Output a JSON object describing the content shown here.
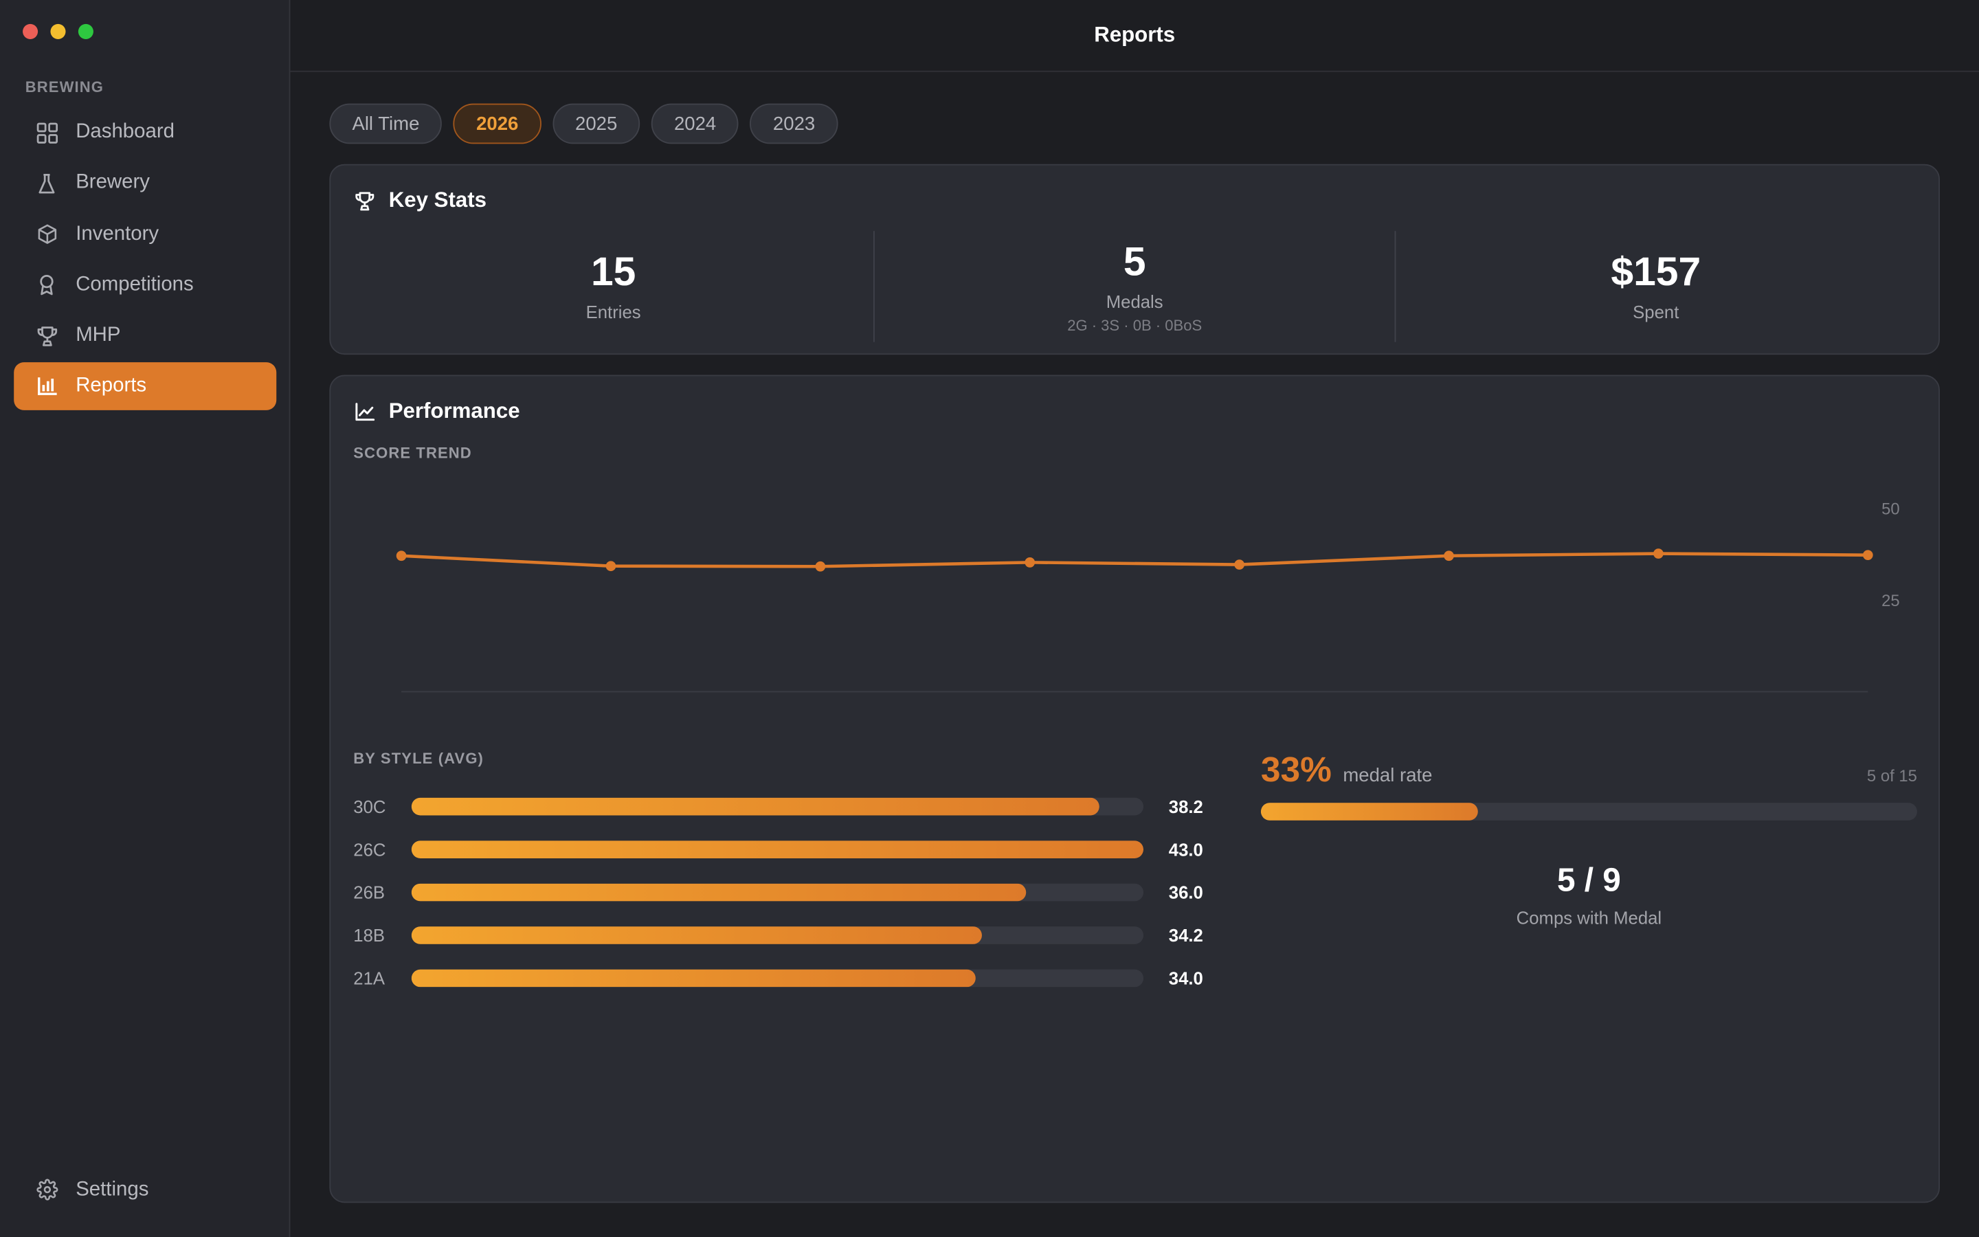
{
  "window": {
    "title": "Reports"
  },
  "sidebar": {
    "section_label": "BREWING",
    "items": [
      {
        "label": "Dashboard",
        "icon": "grid-icon"
      },
      {
        "label": "Brewery",
        "icon": "flask-icon"
      },
      {
        "label": "Inventory",
        "icon": "box-icon"
      },
      {
        "label": "Competitions",
        "icon": "award-icon"
      },
      {
        "label": "MHP",
        "icon": "trophy-icon"
      },
      {
        "label": "Reports",
        "icon": "bar-chart-icon",
        "active": true
      }
    ],
    "settings_label": "Settings"
  },
  "filters": {
    "chips": [
      "All Time",
      "2026",
      "2025",
      "2024",
      "2023"
    ],
    "selected": "2026"
  },
  "key_stats": {
    "title": "Key Stats",
    "entries": {
      "value": "15",
      "label": "Entries"
    },
    "medals": {
      "value": "5",
      "label": "Medals",
      "breakdown": "2G · 3S · 0B · 0BoS"
    },
    "spent": {
      "value": "$157",
      "label": "Spent"
    }
  },
  "performance": {
    "title": "Performance",
    "score_trend_label": "SCORE TREND",
    "by_style_label": "BY STYLE (AVG)",
    "styles": [
      {
        "code": "30C",
        "avg": "38.2",
        "fraction": 0.94
      },
      {
        "code": "26C",
        "avg": "43.0",
        "fraction": 1.0
      },
      {
        "code": "26B",
        "avg": "36.0",
        "fraction": 0.84
      },
      {
        "code": "18B",
        "avg": "34.2",
        "fraction": 0.78
      },
      {
        "code": "21A",
        "avg": "34.0",
        "fraction": 0.77
      }
    ],
    "medal_rate": {
      "percent": "33%",
      "label": "medal rate",
      "count_text": "5 of 15",
      "fraction": 0.33
    },
    "comps_with_medal": {
      "value": "5 / 9",
      "label": "Comps with Medal"
    }
  },
  "colors": {
    "accent": "#dd7a2a",
    "accent_light": "#f3a52f",
    "background": "#1d1e22",
    "card": "#2a2c33",
    "sidebar": "#24252b"
  },
  "chart_data": {
    "type": "line",
    "title": "SCORE TREND",
    "x": [
      1,
      2,
      3,
      4,
      5,
      6,
      7,
      8
    ],
    "series": [
      {
        "values": [
          37.0,
          34.2,
          34.1,
          35.2,
          34.6,
          37.0,
          37.6,
          37.2
        ]
      }
    ],
    "y_ticks": [
      "50",
      "25"
    ],
    "ylim": [
      0,
      50
    ],
    "grid": false,
    "color": "#dd7a2a"
  }
}
